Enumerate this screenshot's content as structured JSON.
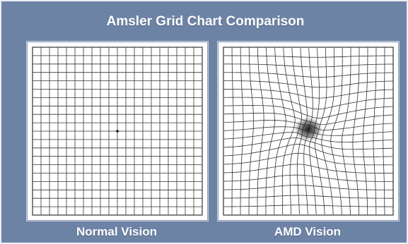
{
  "header": {
    "title": "Amsler Grid Chart Comparison"
  },
  "panels": [
    {
      "caption": "Normal Vision",
      "grid_cells": 20,
      "distortion": 0,
      "center_dot": true
    },
    {
      "caption": "AMD Vision",
      "grid_cells": 20,
      "distortion": 1,
      "center_dot": false,
      "central_scotoma": true
    }
  ],
  "colors": {
    "background": "#6d83a6",
    "grid_line": "#333333",
    "text": "#ffffff"
  }
}
